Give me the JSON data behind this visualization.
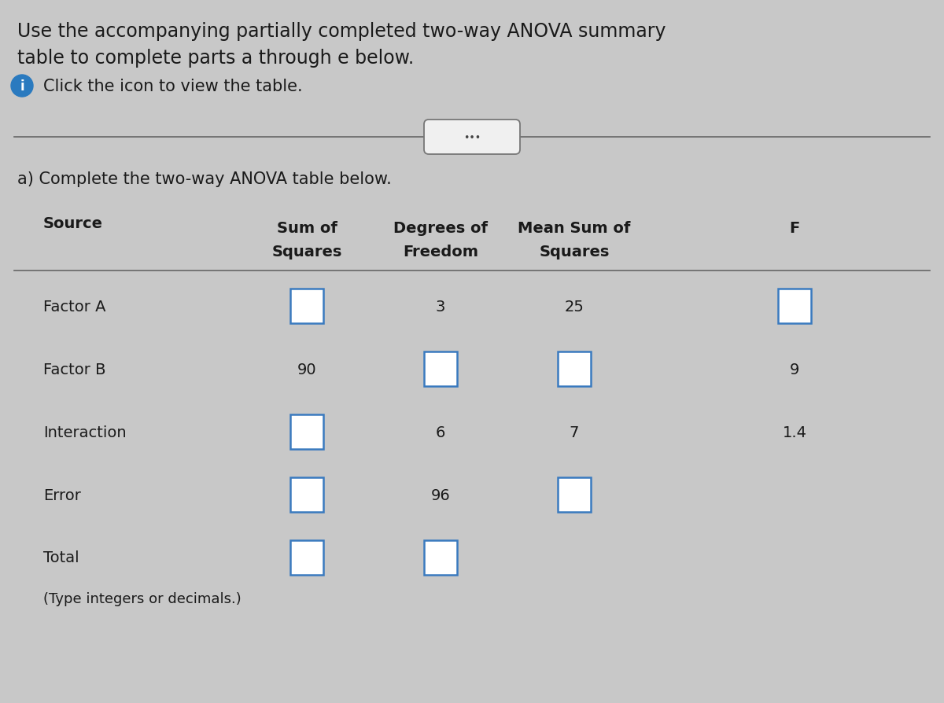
{
  "background_color": "#c8c8c8",
  "title_line1": "Use the accompanying partially completed two-way ANOVA summary",
  "title_line2": "table to complete parts a through e below.",
  "info_text": "Click the icon to view the table.",
  "section_label": "a) Complete the two-way ANOVA table below.",
  "col_header_line1": [
    "Sum of",
    "Degrees of",
    "Mean Sum of",
    "F"
  ],
  "col_header_line2": [
    "Squares",
    "Freedom",
    "Squares",
    ""
  ],
  "source_header": "Source",
  "rows": [
    {
      "source": "Factor A",
      "ss": "",
      "df": "3",
      "ms": "25",
      "f": ""
    },
    {
      "source": "Factor B",
      "ss": "90",
      "df": "",
      "ms": "",
      "f": "9"
    },
    {
      "source": "Interaction",
      "ss": "",
      "df": "6",
      "ms": "7",
      "f": "1.4"
    },
    {
      "source": "Error",
      "ss": "",
      "df": "96",
      "ms": "",
      "f": ""
    },
    {
      "source": "Total",
      "ss": "",
      "df": "",
      "ms": "",
      "f": ""
    }
  ],
  "box_rows": {
    "Factor A": {
      "ss": true,
      "df": false,
      "ms": false,
      "f": true
    },
    "Factor B": {
      "ss": false,
      "df": true,
      "ms": true,
      "f": false
    },
    "Interaction": {
      "ss": true,
      "df": false,
      "ms": false,
      "f": false
    },
    "Error": {
      "ss": true,
      "df": false,
      "ms": true,
      "f": false
    },
    "Total": {
      "ss": true,
      "df": true,
      "ms": false,
      "f": false
    }
  },
  "footnote": "(Type integers or decimals.)",
  "box_color": "#3a7abf",
  "line_color": "#666666",
  "text_color": "#1a1a1a",
  "icon_color": "#2a7abf",
  "btn_edge_color": "#777777",
  "btn_face_color": "#f0f0f0",
  "col_x": {
    "source": 0.05,
    "ss": 0.34,
    "df": 0.5,
    "ms": 0.66,
    "f": 0.88
  },
  "font_size_title": 17,
  "font_size_info": 15,
  "font_size_table_header": 14,
  "font_size_table": 14,
  "font_size_footnote": 13
}
